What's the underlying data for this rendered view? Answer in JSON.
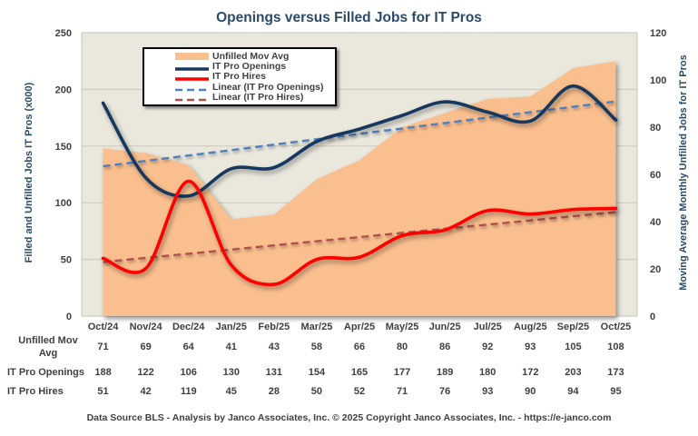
{
  "chart_data": {
    "type": "combo-area-line",
    "title": "Openings versus Filled Jobs for IT Pros",
    "categories": [
      "Oct/24",
      "Nov/24",
      "Dec/24",
      "Jan/25",
      "Feb/25",
      "Mar/25",
      "Apr/25",
      "May/25",
      "Jun/25",
      "Jul/25",
      "Aug/25",
      "Sep/25",
      "Oct/25"
    ],
    "series": [
      {
        "name": "Unfilled Mov Avg",
        "type": "area",
        "axis": "right",
        "color": "#FABF8F",
        "values": [
          71,
          69,
          64,
          41,
          43,
          58,
          66,
          80,
          86,
          92,
          93,
          105,
          108
        ]
      },
      {
        "name": "IT Pro Openings",
        "type": "line",
        "axis": "left",
        "color": "#17375E",
        "values": [
          188,
          122,
          106,
          130,
          131,
          154,
          165,
          177,
          189,
          180,
          172,
          203,
          173
        ]
      },
      {
        "name": "IT Pro Hires",
        "type": "line",
        "axis": "left",
        "color": "#FF0000",
        "values": [
          51,
          42,
          119,
          45,
          28,
          50,
          52,
          71,
          76,
          93,
          90,
          94,
          95
        ]
      },
      {
        "name": "Linear (IT Pro Openings)",
        "type": "linear-trendline",
        "source_series": 1,
        "axis": "left",
        "color": "#4F81BD"
      },
      {
        "name": "Linear (IT Pro Hires)",
        "type": "linear-trendline",
        "source_series": 2,
        "axis": "left",
        "color": "#B0504D"
      }
    ],
    "axes": {
      "left": {
        "title": "Filled and Unfilled Jobs IT Pros (x000)",
        "min": 0,
        "max": 250,
        "step": 50,
        "ticks": [
          0,
          50,
          100,
          150,
          200,
          250
        ]
      },
      "right": {
        "title": "Moving Average Monthly Unfilled Jobs for IT Pros",
        "min": 0,
        "max": 120,
        "step": 20,
        "ticks": [
          0,
          20,
          40,
          60,
          80,
          100,
          120
        ]
      }
    },
    "grid": {
      "horizontal": true,
      "follows_axis": "left"
    },
    "legend": {
      "position": "inside-top-left"
    },
    "data_table": {
      "row_label_lines": [
        [
          "Unfilled Mov",
          "Avg"
        ],
        [
          "IT Pro Openings"
        ],
        [
          "IT Pro Hires"
        ]
      ],
      "row_series": [
        0,
        1,
        2
      ]
    },
    "colors": {
      "plot_background": "#EAE8DD",
      "gridline": "#CBC9BE",
      "plot_border": "#C5C3B8",
      "text": "#3F3F3F",
      "title_text": "#2B4A68"
    }
  },
  "footer": {
    "note": "Data Source BLS - Analysis by Janco Associates, Inc. © 2025 Copyright Janco Associates, Inc. - https://e-janco.com"
  }
}
